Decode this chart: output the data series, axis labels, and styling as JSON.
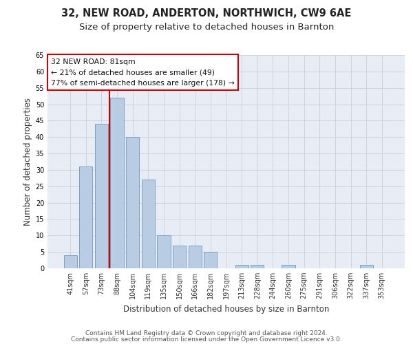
{
  "title": "32, NEW ROAD, ANDERTON, NORTHWICH, CW9 6AE",
  "subtitle": "Size of property relative to detached houses in Barnton",
  "xlabel": "Distribution of detached houses by size in Barnton",
  "ylabel": "Number of detached properties",
  "categories": [
    "41sqm",
    "57sqm",
    "73sqm",
    "88sqm",
    "104sqm",
    "119sqm",
    "135sqm",
    "150sqm",
    "166sqm",
    "182sqm",
    "197sqm",
    "213sqm",
    "228sqm",
    "244sqm",
    "260sqm",
    "275sqm",
    "291sqm",
    "306sqm",
    "322sqm",
    "337sqm",
    "353sqm"
  ],
  "values": [
    4,
    31,
    44,
    52,
    40,
    27,
    10,
    7,
    7,
    5,
    0,
    1,
    1,
    0,
    1,
    0,
    0,
    0,
    0,
    1,
    0
  ],
  "bar_color": "#b8cce4",
  "bar_edge_color": "#5a8ab0",
  "red_line_index": 3,
  "annotation_text": "32 NEW ROAD: 81sqm\n← 21% of detached houses are smaller (49)\n77% of semi-detached houses are larger (178) →",
  "annotation_box_color": "#ffffff",
  "annotation_box_edge_color": "#cc0000",
  "red_line_color": "#cc0000",
  "ylim": [
    0,
    65
  ],
  "yticks": [
    0,
    5,
    10,
    15,
    20,
    25,
    30,
    35,
    40,
    45,
    50,
    55,
    60,
    65
  ],
  "grid_color": "#c8d0de",
  "background_color": "#e8edf5",
  "footer_line1": "Contains HM Land Registry data © Crown copyright and database right 2024.",
  "footer_line2": "Contains public sector information licensed under the Open Government Licence v3.0.",
  "title_fontsize": 10.5,
  "subtitle_fontsize": 9.5,
  "xlabel_fontsize": 8.5,
  "ylabel_fontsize": 8.5,
  "tick_fontsize": 7,
  "footer_fontsize": 6.5,
  "annotation_fontsize": 7.8
}
